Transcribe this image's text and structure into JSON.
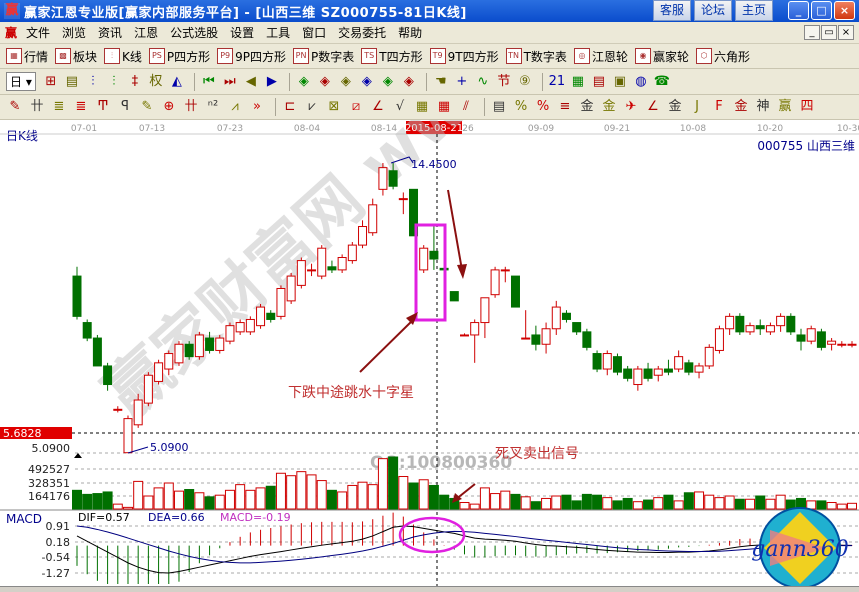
{
  "window": {
    "title": "赢家江恩专业版[赢家内部服务平台] - [山西三维   SZ000755-81日K线]",
    "links": [
      "客服",
      "论坛",
      "主页"
    ],
    "controls": [
      "_",
      "□",
      "×"
    ]
  },
  "menu": {
    "logo": "赢",
    "items": [
      "文件",
      "浏览",
      "资讯",
      "江恩",
      "公式选股",
      "设置",
      "工具",
      "窗口",
      "交易委托",
      "帮助"
    ],
    "mdi_controls": [
      "_",
      "▭",
      "×"
    ]
  },
  "toolbar1": [
    {
      "icon": "grid-icon",
      "badge": "▦",
      "label": "行情"
    },
    {
      "icon": "blocks-icon",
      "badge": "▩",
      "label": "板块"
    },
    {
      "icon": "kline-icon",
      "badge": "⫶",
      "label": "K线"
    },
    {
      "icon": "ps-icon",
      "badge": "PS",
      "label": "P四方形"
    },
    {
      "icon": "p9-icon",
      "badge": "P9",
      "label": "9P四方形"
    },
    {
      "icon": "pn-icon",
      "badge": "PN",
      "label": "P数字表"
    },
    {
      "icon": "ts-icon",
      "badge": "TS",
      "label": "T四方形"
    },
    {
      "icon": "t9-icon",
      "badge": "T9",
      "label": "9T四方形"
    },
    {
      "icon": "tn-icon",
      "badge": "TN",
      "label": "T数字表"
    },
    {
      "icon": "gann-wheel-icon",
      "badge": "◎",
      "label": "江恩轮"
    },
    {
      "icon": "yingjia-wheel-icon",
      "badge": "◉",
      "label": "赢家轮"
    },
    {
      "icon": "hexagon-icon",
      "badge": "⬡",
      "label": "六角形"
    }
  ],
  "toolbar2": {
    "period": "日",
    "icons": [
      {
        "name": "window-icon",
        "g": "⊞"
      },
      {
        "name": "note-icon",
        "g": "▤"
      },
      {
        "name": "candle3-icon",
        "g": "⫶"
      },
      {
        "name": "candle9-icon",
        "g": "⫶"
      },
      {
        "name": "bar-icon",
        "g": "‡"
      },
      {
        "name": "weight-icon",
        "g": "权"
      },
      {
        "name": "fill-icon",
        "g": "◭"
      },
      {
        "name": "first-icon",
        "g": "⏮"
      },
      {
        "name": "last-icon",
        "g": "⏭"
      },
      {
        "name": "prev-icon",
        "g": "◀"
      },
      {
        "name": "next-icon",
        "g": "▶"
      },
      {
        "name": "diamond1-icon",
        "g": "◈"
      },
      {
        "name": "diamond2-icon",
        "g": "◈"
      },
      {
        "name": "diamond3-icon",
        "g": "◈"
      },
      {
        "name": "diamond4-icon",
        "g": "◈"
      },
      {
        "name": "diamond5-icon",
        "g": "◈"
      },
      {
        "name": "diamond6-icon",
        "g": "◈"
      },
      {
        "name": "hand-icon",
        "g": "☚"
      },
      {
        "name": "crosshair-icon",
        "g": "+"
      },
      {
        "name": "line-icon",
        "g": "∿"
      },
      {
        "name": "section-icon",
        "g": "节"
      },
      {
        "name": "number-icon",
        "g": "⑨"
      },
      {
        "name": "calendar-icon",
        "g": "21"
      },
      {
        "name": "calculator-icon",
        "g": "▦"
      },
      {
        "name": "doc-icon",
        "g": "▤"
      },
      {
        "name": "save-icon",
        "g": "▣"
      },
      {
        "name": "globe-icon",
        "g": "◍"
      },
      {
        "name": "phone-icon",
        "g": "☎"
      }
    ]
  },
  "toolbar3": [
    {
      "name": "pen-icon",
      "g": "✎"
    },
    {
      "name": "hash-icon",
      "g": "卄"
    },
    {
      "name": "gold1-icon",
      "g": "≣"
    },
    {
      "name": "gold2-icon",
      "g": "≣"
    },
    {
      "name": "f-icon",
      "g": "Ͳ"
    },
    {
      "name": "spiral-icon",
      "g": "ꟼ"
    },
    {
      "name": "pen2-icon",
      "g": "✎"
    },
    {
      "name": "circle-grid-icon",
      "g": "⊕"
    },
    {
      "name": "hash2-icon",
      "g": "卄"
    },
    {
      "name": "n2-icon",
      "g": "ⁿ²"
    },
    {
      "name": "fan-icon",
      "g": "⩘"
    },
    {
      "name": "more-icon",
      "g": "»"
    },
    {
      "name": "box-icon",
      "g": "⊏"
    },
    {
      "name": "fan2-icon",
      "g": "⩗"
    },
    {
      "name": "square1-icon",
      "g": "⊠"
    },
    {
      "name": "square2-icon",
      "g": "⧄"
    },
    {
      "name": "angle-icon",
      "g": "∠"
    },
    {
      "name": "v-icon",
      "g": "√"
    },
    {
      "name": "grid1-icon",
      "g": "▦"
    },
    {
      "name": "grid2-icon",
      "g": "▦"
    },
    {
      "name": "slash-icon",
      "g": "⫽"
    },
    {
      "name": "ruler-icon",
      "g": "▤"
    },
    {
      "name": "percent-fan-icon",
      "g": "%"
    },
    {
      "name": "percent-icon",
      "g": "%"
    },
    {
      "name": "percent-line-icon",
      "g": "≡"
    },
    {
      "name": "coin-icon",
      "g": "金"
    },
    {
      "name": "coin2-icon",
      "g": "金"
    },
    {
      "name": "rocket-icon",
      "g": "✈"
    },
    {
      "name": "angle2-icon",
      "g": "∠"
    },
    {
      "name": "gold3-icon",
      "g": "金"
    },
    {
      "name": "j-icon",
      "g": "J"
    },
    {
      "name": "f2-icon",
      "g": "F"
    },
    {
      "name": "gold4-icon",
      "g": "金"
    },
    {
      "name": "god-icon",
      "g": "神"
    },
    {
      "name": "win-icon",
      "g": "赢"
    },
    {
      "name": "four-icon",
      "g": "四"
    }
  ],
  "chart": {
    "panel_label": "日K线",
    "stock_label": "000755 山西三维",
    "date_ticks": [
      "07-01",
      "07-13",
      "07-23",
      "08-04",
      "08-14",
      "26",
      "09-09",
      "09-21",
      "10-08",
      "10-20",
      "10-30"
    ],
    "cursor_date": "2015-08-21",
    "cursor_price": "5.6828",
    "low_axis_label": "5.0900",
    "high_marker": "14.4500",
    "low_marker": "5.0900",
    "annotation_doji": "下跌中途跳水十字星",
    "annotation_death_cross": "死叉卖出信号",
    "volume_ticks": [
      "492527",
      "328351",
      "164176"
    ],
    "macd_label": "MACD",
    "dif": "DIF=0.57",
    "dea": "DEA=0.66",
    "macd": "MACD=-0.19",
    "macd_ticks": [
      "0.91",
      "0.18",
      "-0.54",
      "-1.27"
    ],
    "watermark": "赢家财富网 www.yingjia360.com",
    "qq": "QQ:100800360",
    "logo_text": "gann360",
    "colors": {
      "up": "#d00000",
      "down": "#007000",
      "dif": "#000000",
      "dea": "#000080",
      "highlight": "#e020e0",
      "arrow": "#8b1010",
      "cursor_tag": "#e00000"
    }
  },
  "chart_data": {
    "type": "candlestick",
    "ohlc": [
      [
        10.8,
        11.1,
        9.4,
        9.5
      ],
      [
        9.3,
        9.4,
        8.7,
        8.8
      ],
      [
        8.8,
        8.9,
        7.9,
        7.9
      ],
      [
        7.9,
        8.0,
        7.1,
        7.3
      ],
      [
        6.5,
        6.6,
        6.4,
        6.5
      ],
      [
        5.1,
        6.3,
        5.09,
        6.2
      ],
      [
        6.0,
        7.0,
        5.9,
        6.8
      ],
      [
        6.7,
        7.7,
        6.6,
        7.6
      ],
      [
        7.4,
        8.1,
        7.3,
        8.0
      ],
      [
        7.8,
        8.4,
        7.6,
        8.3
      ],
      [
        8.0,
        8.7,
        7.9,
        8.6
      ],
      [
        8.6,
        8.7,
        8.1,
        8.2
      ],
      [
        8.2,
        9.0,
        8.1,
        8.9
      ],
      [
        8.8,
        9.0,
        8.3,
        8.4
      ],
      [
        8.4,
        8.9,
        8.3,
        8.8
      ],
      [
        8.7,
        9.3,
        8.6,
        9.2
      ],
      [
        9.0,
        9.4,
        8.9,
        9.3
      ],
      [
        9.0,
        9.5,
        8.9,
        9.4
      ],
      [
        9.2,
        9.9,
        9.1,
        9.8
      ],
      [
        9.6,
        9.7,
        9.3,
        9.4
      ],
      [
        9.5,
        10.5,
        9.4,
        10.4
      ],
      [
        10.0,
        10.9,
        9.9,
        10.8
      ],
      [
        10.5,
        11.4,
        10.4,
        11.3
      ],
      [
        11.0,
        11.2,
        10.8,
        11.0
      ],
      [
        10.8,
        11.8,
        10.7,
        11.7
      ],
      [
        11.1,
        11.3,
        10.9,
        11.0
      ],
      [
        11.0,
        11.5,
        10.9,
        11.4
      ],
      [
        11.3,
        11.9,
        11.2,
        11.8
      ],
      [
        11.8,
        12.6,
        11.7,
        12.4
      ],
      [
        12.2,
        13.3,
        12.1,
        13.1
      ],
      [
        13.6,
        14.45,
        13.4,
        14.3
      ],
      [
        14.2,
        14.45,
        13.6,
        13.7
      ],
      [
        13.3,
        13.5,
        12.8,
        13.3
      ],
      [
        13.6,
        13.6,
        12.1,
        12.1
      ],
      [
        11.0,
        11.8,
        10.9,
        11.7
      ],
      [
        11.6,
        12.4,
        11.0,
        11.35
      ],
      [
        11.05,
        11.2,
        10.5,
        11.0
      ],
      [
        10.3,
        10.3,
        10.0,
        10.0
      ],
      [
        8.9,
        8.95,
        8.9,
        8.9
      ],
      [
        8.9,
        9.4,
        8.0,
        9.3
      ],
      [
        9.3,
        10.1,
        8.8,
        10.1
      ],
      [
        10.2,
        11.1,
        10.1,
        11.0
      ],
      [
        11.0,
        11.1,
        10.6,
        11.0
      ],
      [
        10.8,
        10.8,
        9.8,
        9.8
      ],
      [
        8.8,
        9.7,
        8.8,
        8.8
      ],
      [
        8.9,
        9.2,
        8.4,
        8.6
      ],
      [
        8.6,
        9.3,
        8.3,
        9.1
      ],
      [
        9.1,
        10.0,
        8.9,
        9.8
      ],
      [
        9.6,
        9.7,
        9.3,
        9.4
      ],
      [
        9.3,
        9.3,
        8.9,
        9.0
      ],
      [
        9.0,
        9.1,
        8.4,
        8.5
      ],
      [
        8.3,
        8.4,
        7.7,
        7.8
      ],
      [
        7.8,
        8.4,
        7.6,
        8.3
      ],
      [
        8.2,
        8.3,
        7.6,
        7.7
      ],
      [
        7.8,
        7.9,
        7.4,
        7.5
      ],
      [
        7.3,
        7.9,
        7.1,
        7.8
      ],
      [
        7.8,
        8.0,
        7.4,
        7.5
      ],
      [
        7.6,
        7.9,
        7.4,
        7.8
      ],
      [
        7.8,
        8.1,
        7.6,
        7.7
      ],
      [
        7.8,
        8.4,
        7.7,
        8.2
      ],
      [
        8.0,
        8.1,
        7.6,
        7.7
      ],
      [
        7.7,
        8.0,
        7.5,
        7.9
      ],
      [
        7.9,
        8.6,
        7.8,
        8.5
      ],
      [
        8.4,
        9.2,
        8.3,
        9.1
      ],
      [
        9.1,
        9.6,
        8.9,
        9.5
      ],
      [
        9.5,
        9.6,
        8.9,
        9.0
      ],
      [
        9.0,
        9.3,
        8.9,
        9.2
      ],
      [
        9.2,
        9.4,
        8.9,
        9.1
      ],
      [
        9.0,
        9.3,
        8.9,
        9.2
      ],
      [
        9.2,
        9.6,
        9.0,
        9.5
      ],
      [
        9.5,
        9.6,
        8.9,
        9.0
      ],
      [
        8.9,
        9.1,
        8.4,
        8.7
      ],
      [
        8.7,
        9.2,
        8.6,
        9.1
      ],
      [
        9.0,
        9.1,
        8.4,
        8.5
      ],
      [
        8.6,
        8.8,
        8.4,
        8.7
      ],
      [
        8.6,
        8.7,
        8.5,
        8.6
      ],
      [
        8.6,
        8.7,
        8.5,
        8.6
      ]
    ],
    "volume": [
      230000,
      180000,
      190000,
      210000,
      60000,
      20000,
      340000,
      160000,
      260000,
      320000,
      220000,
      240000,
      200000,
      150000,
      170000,
      230000,
      300000,
      230000,
      260000,
      280000,
      440000,
      410000,
      460000,
      420000,
      350000,
      230000,
      210000,
      290000,
      330000,
      300000,
      620000,
      640000,
      400000,
      320000,
      360000,
      290000,
      170000,
      130000,
      80000,
      60000,
      260000,
      190000,
      220000,
      180000,
      150000,
      90000,
      130000,
      160000,
      170000,
      100000,
      180000,
      170000,
      140000,
      100000,
      130000,
      90000,
      110000,
      140000,
      170000,
      100000,
      200000,
      210000,
      170000,
      140000,
      160000,
      120000,
      120000,
      160000,
      120000,
      170000,
      110000,
      130000,
      100000,
      100000,
      80000,
      60000,
      70000
    ],
    "volume_range": [
      0,
      492527
    ],
    "price_range": [
      5.09,
      14.45
    ],
    "dif": [
      0.45,
      0.2,
      -0.05,
      -0.3,
      -0.55,
      -0.8,
      -1.0,
      -1.15,
      -1.25,
      -1.27,
      -1.2,
      -1.1,
      -1.0,
      -0.9,
      -0.8,
      -0.7,
      -0.6,
      -0.5,
      -0.42,
      -0.35,
      -0.28,
      -0.2,
      -0.12,
      -0.05,
      0.02,
      0.08,
      0.14,
      0.2,
      0.3,
      0.45,
      0.65,
      0.85,
      0.91,
      0.88,
      0.8,
      0.72,
      0.64,
      0.57,
      0.45,
      0.35,
      0.3,
      0.28,
      0.25,
      0.2,
      0.12,
      0.05,
      0.0,
      -0.02,
      -0.05,
      -0.08,
      -0.12,
      -0.18,
      -0.22,
      -0.25,
      -0.28,
      -0.3,
      -0.31,
      -0.32,
      -0.32,
      -0.3,
      -0.3,
      -0.28,
      -0.25,
      -0.2,
      -0.12,
      -0.05,
      0.0,
      0.03,
      0.05,
      0.07,
      0.06,
      0.04,
      0.04,
      0.03,
      0.02,
      0.02,
      0.01
    ],
    "dea": [
      0.91,
      0.85,
      0.75,
      0.63,
      0.5,
      0.35,
      0.2,
      0.05,
      -0.1,
      -0.25,
      -0.38,
      -0.5,
      -0.6,
      -0.68,
      -0.74,
      -0.78,
      -0.8,
      -0.8,
      -0.78,
      -0.75,
      -0.72,
      -0.68,
      -0.63,
      -0.58,
      -0.52,
      -0.46,
      -0.4,
      -0.33,
      -0.25,
      -0.15,
      -0.03,
      0.1,
      0.25,
      0.4,
      0.5,
      0.58,
      0.63,
      0.66,
      0.65,
      0.62,
      0.57,
      0.52,
      0.47,
      0.42,
      0.36,
      0.3,
      0.25,
      0.2,
      0.15,
      0.1,
      0.05,
      0.0,
      -0.05,
      -0.1,
      -0.14,
      -0.18,
      -0.2,
      -0.23,
      -0.25,
      -0.26,
      -0.27,
      -0.27,
      -0.27,
      -0.26,
      -0.23,
      -0.2,
      -0.16,
      -0.12,
      -0.08,
      -0.05,
      -0.03,
      -0.02,
      -0.01,
      0.0,
      0.0,
      0.0,
      0.0
    ],
    "macd_range": [
      -1.27,
      0.91
    ]
  }
}
